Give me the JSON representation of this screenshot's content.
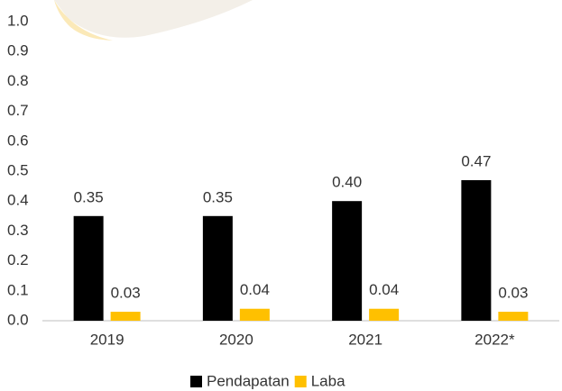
{
  "chart_data": {
    "type": "bar",
    "categories": [
      "2019",
      "2020",
      "2021",
      "2022*"
    ],
    "series": [
      {
        "name": "Pendapatan",
        "color": "#000000",
        "values": [
          0.35,
          0.35,
          0.4,
          0.47
        ],
        "value_labels": [
          "0.35",
          "0.35",
          "0.40",
          "0.47"
        ]
      },
      {
        "name": "Laba",
        "color": "#ffc000",
        "values": [
          0.03,
          0.04,
          0.04,
          0.03
        ],
        "value_labels": [
          "0.03",
          "0.04",
          "0.04",
          "0.03"
        ]
      }
    ],
    "ylim": [
      0,
      1
    ],
    "yticks": [
      {
        "value": 0,
        "label": "0.0"
      },
      0.1,
      0.2,
      0.3,
      0.4,
      0.5,
      0.6,
      0.7,
      0.8,
      0.9,
      {
        "value": 1,
        "label": "1.0"
      }
    ],
    "grid": false,
    "legend": "bottom"
  }
}
